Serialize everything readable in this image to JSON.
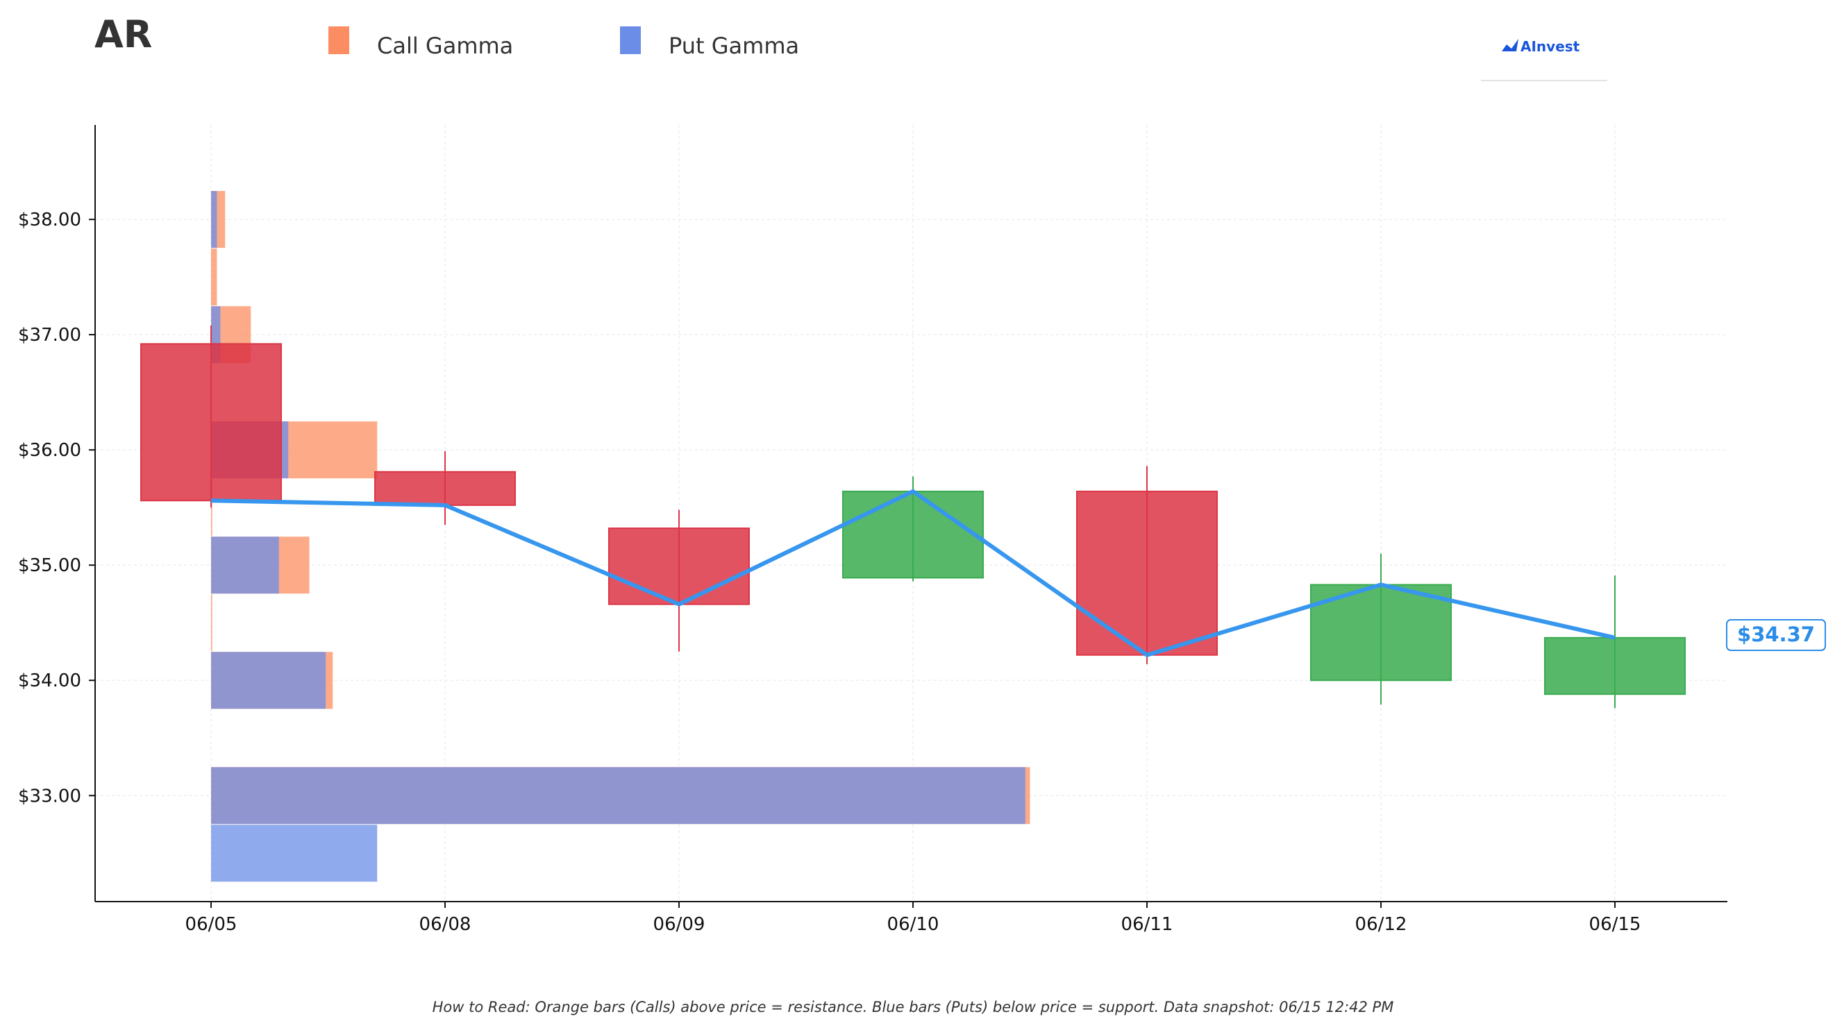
{
  "header": {
    "ticker": "AR",
    "legend": [
      {
        "label": "Call Gamma",
        "color": "#fc8d62"
      },
      {
        "label": "Put Gamma",
        "color": "#6b8de8"
      }
    ],
    "brand": "AInvest"
  },
  "footnote": "How to Read: Orange bars (Calls) above price = resistance. Blue bars (Puts) below price = support. Data snapshot: 06/15 12:42 PM",
  "current_price_label": "$34.37",
  "colors": {
    "up": "#3aab4f",
    "down": "#dc3545",
    "price_line": "#3796ee",
    "call": "#fc8d62",
    "put": "#6b8de8"
  },
  "chart_data": {
    "type": "candlestick",
    "categories": [
      "06/05",
      "06/08",
      "06/09",
      "06/10",
      "06/11",
      "06/12",
      "06/15"
    ],
    "ohlc": [
      {
        "date": "06/05",
        "open": 36.92,
        "high": 37.08,
        "low": 35.5,
        "close": 35.56
      },
      {
        "date": "06/08",
        "open": 35.81,
        "high": 35.99,
        "low": 35.35,
        "close": 35.52
      },
      {
        "date": "06/09",
        "open": 35.32,
        "high": 35.48,
        "low": 34.25,
        "close": 34.66
      },
      {
        "date": "06/10",
        "open": 34.89,
        "high": 35.77,
        "low": 34.86,
        "close": 35.64
      },
      {
        "date": "06/11",
        "open": 35.64,
        "high": 35.86,
        "low": 34.14,
        "close": 34.22
      },
      {
        "date": "06/12",
        "open": 34.0,
        "high": 35.1,
        "low": 33.79,
        "close": 34.83
      },
      {
        "date": "06/15",
        "open": 33.88,
        "high": 34.91,
        "low": 33.76,
        "close": 34.37
      }
    ],
    "price_line": {
      "name": "",
      "values": [
        35.56,
        35.52,
        34.66,
        35.64,
        34.22,
        34.83,
        34.37
      ]
    },
    "gamma_levels": [
      {
        "strike": 38.0,
        "call": 0.06,
        "put": 0.025
      },
      {
        "strike": 37.5,
        "call": 0.025,
        "put": 0.0
      },
      {
        "strike": 37.0,
        "call": 0.17,
        "put": 0.04
      },
      {
        "strike": 36.0,
        "call": 0.71,
        "put": 0.33
      },
      {
        "strike": 35.5,
        "call": 0.005,
        "put": 0.0
      },
      {
        "strike": 35.0,
        "call": 0.42,
        "put": 0.29
      },
      {
        "strike": 34.5,
        "call": 0.005,
        "put": 0.0
      },
      {
        "strike": 34.0,
        "call": 0.52,
        "put": 0.49
      },
      {
        "strike": 33.0,
        "call": 3.5,
        "put": 3.48
      },
      {
        "strike": 32.5,
        "call": 0.0,
        "put": 0.71
      }
    ],
    "gamma_scale_note": "",
    "yticks": [
      "$33.00",
      "$34.00",
      "$35.00",
      "$36.00",
      "$37.00",
      "$38.00"
    ],
    "ytick_values": [
      33,
      34,
      35,
      36,
      37,
      38
    ],
    "ylim": [
      32.08,
      38.82
    ],
    "grid": true,
    "title": "AR",
    "xlabel": "",
    "ylabel": ""
  }
}
